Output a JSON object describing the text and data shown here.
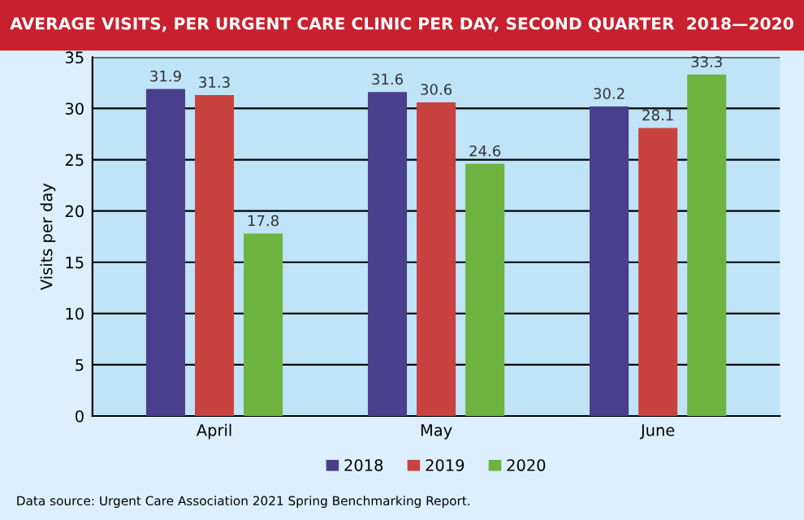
{
  "chart_data": {
    "type": "bar",
    "title": "AVERAGE VISITS, PER URGENT CARE CLINIC PER DAY, SECOND QUARTER  2018—2020",
    "ylabel": "Visits per day",
    "categories": [
      "April",
      "May",
      "June"
    ],
    "series": [
      {
        "name": "2018",
        "color": "#4a3f8c",
        "values": [
          31.9,
          31.6,
          30.2
        ]
      },
      {
        "name": "2019",
        "color": "#c8433f",
        "values": [
          31.3,
          30.6,
          28.1
        ]
      },
      {
        "name": "2020",
        "color": "#6db33f",
        "values": [
          17.8,
          24.6,
          33.3
        ]
      }
    ],
    "ylim": [
      0,
      35
    ],
    "yticks": [
      0,
      5,
      10,
      15,
      20,
      25,
      30,
      35
    ],
    "grid": "y",
    "legend": "bottom",
    "data_labels": true,
    "annotations": [
      "Data source: Urgent Care Association 2021 Spring Benchmarking Report."
    ]
  }
}
